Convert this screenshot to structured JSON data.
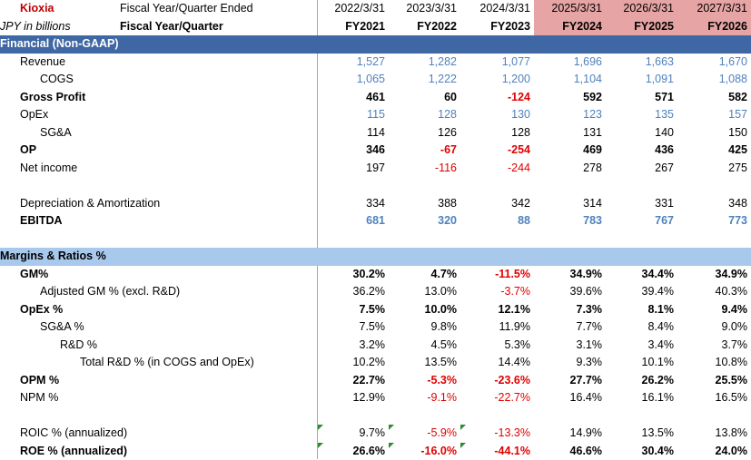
{
  "header": {
    "company": "Kioxia",
    "units": "JPY in billions",
    "fy_ended_label": "Fiscal Year/Quarter Ended",
    "fy_label": "Fiscal Year/Quarter",
    "dates": [
      "2022/3/31",
      "2023/3/31",
      "2024/3/31",
      "2025/3/31",
      "2026/3/31",
      "2027/3/31"
    ],
    "years": [
      "FY2021",
      "FY2022",
      "FY2023",
      "FY2024",
      "FY2025",
      "FY2026"
    ]
  },
  "colors": {
    "section_dark": "#3f67a3",
    "section_light": "#a8c8ec",
    "forecast_highlight": "#e6a4a4",
    "blue_text": "#4f81bd",
    "red_text": "#e00000",
    "company_red": "#c00000"
  },
  "sections": {
    "financial": "Financial (Non-GAAP)",
    "margins": "Margins & Ratios %"
  },
  "rows": [
    {
      "label": "Revenue",
      "indent": 1,
      "bold": false,
      "style": "blue",
      "values": [
        "1,527",
        "1,282",
        "1,077",
        "1,696",
        "1,663",
        "1,670"
      ]
    },
    {
      "label": "COGS",
      "indent": 2,
      "bold": false,
      "style": "blue",
      "values": [
        "1,065",
        "1,222",
        "1,200",
        "1,104",
        "1,091",
        "1,088"
      ]
    },
    {
      "label": "Gross Profit",
      "indent": 1,
      "bold": true,
      "style": "black",
      "values": [
        "461",
        "60",
        "-124",
        "592",
        "571",
        "582"
      ]
    },
    {
      "label": "OpEx",
      "indent": 1,
      "bold": false,
      "style": "blue",
      "values": [
        "115",
        "128",
        "130",
        "123",
        "135",
        "157"
      ]
    },
    {
      "label": "SG&A",
      "indent": 2,
      "bold": false,
      "style": "black",
      "values": [
        "114",
        "126",
        "128",
        "131",
        "140",
        "150"
      ]
    },
    {
      "label": "OP",
      "indent": 1,
      "bold": true,
      "style": "black",
      "values": [
        "346",
        "-67",
        "-254",
        "469",
        "436",
        "425"
      ]
    },
    {
      "label": "Net income",
      "indent": 1,
      "bold": false,
      "style": "black",
      "values": [
        "197",
        "-116",
        "-244",
        "278",
        "267",
        "275"
      ]
    },
    {
      "label": "",
      "indent": 0,
      "bold": false,
      "style": "black",
      "values": [
        "",
        "",
        "",
        "",
        "",
        ""
      ]
    },
    {
      "label": "Depreciation & Amortization",
      "indent": 1,
      "bold": false,
      "style": "black",
      "values": [
        "334",
        "388",
        "342",
        "314",
        "331",
        "348"
      ]
    },
    {
      "label": "EBITDA",
      "indent": 1,
      "bold": true,
      "style": "blue",
      "values": [
        "681",
        "320",
        "88",
        "783",
        "767",
        "773"
      ]
    },
    {
      "label": "",
      "indent": 0,
      "bold": false,
      "style": "black",
      "values": [
        "",
        "",
        "",
        "",
        "",
        ""
      ]
    },
    {
      "section": "margins"
    },
    {
      "label": "GM%",
      "indent": 1,
      "bold": true,
      "style": "black",
      "values": [
        "30.2%",
        "4.7%",
        "-11.5%",
        "34.9%",
        "34.4%",
        "34.9%"
      ]
    },
    {
      "label": "Adjusted GM % (excl. R&D)",
      "indent": 3,
      "bold": false,
      "style": "black",
      "values": [
        "36.2%",
        "13.0%",
        "-3.7%",
        "39.6%",
        "39.4%",
        "40.3%"
      ]
    },
    {
      "label": "OpEx %",
      "indent": 1,
      "bold": true,
      "style": "black",
      "values": [
        "7.5%",
        "10.0%",
        "12.1%",
        "7.3%",
        "8.1%",
        "9.4%"
      ]
    },
    {
      "label": "SG&A %",
      "indent": 3,
      "bold": false,
      "style": "black",
      "values": [
        "7.5%",
        "9.8%",
        "11.9%",
        "7.7%",
        "8.4%",
        "9.0%"
      ]
    },
    {
      "label": "R&D %",
      "indent": 4,
      "bold": false,
      "style": "black",
      "values": [
        "3.2%",
        "4.5%",
        "5.3%",
        "3.1%",
        "3.4%",
        "3.7%"
      ]
    },
    {
      "label": "Total R&D % (in COGS and OpEx)",
      "indent": 5,
      "bold": false,
      "style": "black",
      "values": [
        "10.2%",
        "13.5%",
        "14.4%",
        "9.3%",
        "10.1%",
        "10.8%"
      ]
    },
    {
      "label": "OPM %",
      "indent": 1,
      "bold": true,
      "style": "black",
      "values": [
        "22.7%",
        "-5.3%",
        "-23.6%",
        "27.7%",
        "26.2%",
        "25.5%"
      ]
    },
    {
      "label": "NPM %",
      "indent": 1,
      "bold": false,
      "style": "black",
      "values": [
        "12.9%",
        "-9.1%",
        "-22.7%",
        "16.4%",
        "16.1%",
        "16.5%"
      ]
    },
    {
      "label": "",
      "indent": 0,
      "bold": false,
      "style": "black",
      "values": [
        "",
        "",
        "",
        "",
        "",
        ""
      ]
    },
    {
      "label": "ROIC % (annualized)",
      "indent": 1,
      "bold": false,
      "style": "black",
      "flags": true,
      "values": [
        "9.7%",
        "-5.9%",
        "-13.3%",
        "14.9%",
        "13.5%",
        "13.8%"
      ]
    },
    {
      "label": "ROE % (annualized)",
      "indent": 1,
      "bold": true,
      "style": "black",
      "flags": true,
      "values": [
        "26.6%",
        "-16.0%",
        "-44.1%",
        "46.6%",
        "30.4%",
        "24.0%"
      ]
    }
  ]
}
